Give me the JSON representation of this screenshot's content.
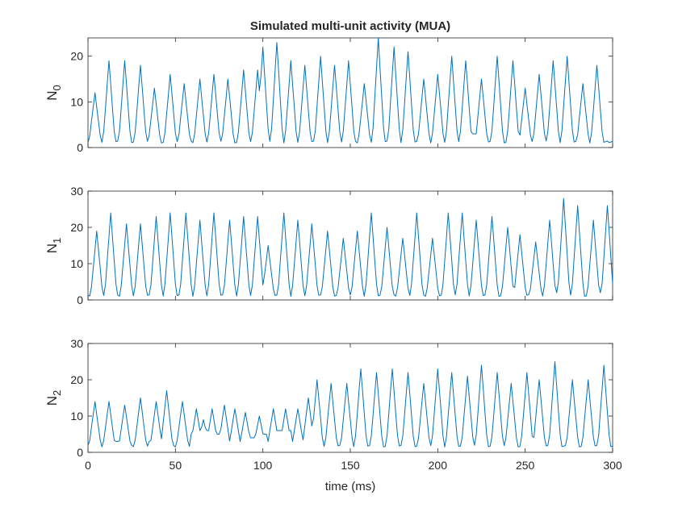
{
  "chart_data": {
    "type": "line",
    "title": "Simulated multi-unit activity (MUA)",
    "xlabel": "time (ms)",
    "xlim": [
      0,
      300
    ],
    "xticks": [
      0,
      50,
      100,
      150,
      200,
      250,
      300
    ],
    "line_color": "#0072BD",
    "axis_color": "#262626",
    "grid": false,
    "panels": [
      {
        "ylabel_main": "N",
        "ylabel_sub": "0",
        "ylim": [
          0,
          24
        ],
        "yticks": [
          0,
          10,
          20
        ],
        "baseline": 1,
        "peaks": [
          [
            4,
            12
          ],
          [
            12,
            19
          ],
          [
            21,
            19
          ],
          [
            30,
            18
          ],
          [
            38,
            13
          ],
          [
            47,
            16
          ],
          [
            55,
            14
          ],
          [
            64,
            15
          ],
          [
            72,
            16
          ],
          [
            80,
            15
          ],
          [
            89,
            17
          ],
          [
            97,
            17
          ],
          [
            100,
            22
          ],
          [
            108,
            23
          ],
          [
            116,
            19
          ],
          [
            124,
            18
          ],
          [
            133,
            20
          ],
          [
            141,
            18
          ],
          [
            149,
            19
          ],
          [
            158,
            14
          ],
          [
            166,
            24
          ],
          [
            175,
            22
          ],
          [
            183,
            21
          ],
          [
            192,
            15
          ],
          [
            200,
            16
          ],
          [
            208,
            20
          ],
          [
            216,
            19
          ],
          [
            225,
            15
          ],
          [
            234,
            20
          ],
          [
            243,
            19
          ],
          [
            250,
            13
          ],
          [
            258,
            16
          ],
          [
            266,
            19
          ],
          [
            274,
            20
          ],
          [
            283,
            14
          ],
          [
            291,
            18
          ]
        ],
        "noise": [
          [
            126,
            3
          ],
          [
            142,
            3
          ],
          [
            158,
            4
          ],
          [
            177,
            4
          ],
          [
            200,
            3
          ],
          [
            221,
            3
          ],
          [
            226,
            5
          ],
          [
            233,
            3
          ],
          [
            250,
            3
          ]
        ]
      },
      {
        "ylabel_main": "N",
        "ylabel_sub": "1",
        "ylim": [
          0,
          30
        ],
        "yticks": [
          0,
          10,
          20,
          30
        ],
        "baseline": 1,
        "peaks": [
          [
            5,
            19
          ],
          [
            13,
            24
          ],
          [
            22,
            21
          ],
          [
            30,
            21
          ],
          [
            39,
            23
          ],
          [
            47,
            24
          ],
          [
            56,
            24
          ],
          [
            64,
            22
          ],
          [
            72,
            24
          ],
          [
            81,
            22
          ],
          [
            89,
            23
          ],
          [
            97,
            23
          ],
          [
            103,
            15
          ],
          [
            112,
            24
          ],
          [
            120,
            22
          ],
          [
            128,
            21
          ],
          [
            137,
            19
          ],
          [
            146,
            17
          ],
          [
            154,
            19
          ],
          [
            162,
            24
          ],
          [
            171,
            20
          ],
          [
            180,
            17
          ],
          [
            188,
            24
          ],
          [
            197,
            17
          ],
          [
            206,
            24
          ],
          [
            214,
            24
          ],
          [
            222,
            22
          ],
          [
            231,
            23
          ],
          [
            240,
            20
          ],
          [
            247,
            18
          ],
          [
            256,
            16
          ],
          [
            264,
            22
          ],
          [
            272,
            28
          ],
          [
            280,
            26
          ],
          [
            289,
            22
          ],
          [
            297,
            26
          ]
        ],
        "noise": [
          [
            255,
            2
          ],
          [
            269,
            2
          ],
          [
            293,
            2
          ]
        ]
      },
      {
        "ylabel_main": "N",
        "ylabel_sub": "2",
        "ylim": [
          0,
          30
        ],
        "yticks": [
          0,
          10,
          20,
          30
        ],
        "baseline": 1.5,
        "peaks": [
          [
            4,
            14
          ],
          [
            12,
            14
          ],
          [
            21,
            13
          ],
          [
            30,
            15
          ],
          [
            39,
            14
          ],
          [
            45,
            17
          ],
          [
            54,
            14
          ],
          [
            62,
            12
          ],
          [
            66,
            9
          ],
          [
            71,
            12
          ],
          [
            78,
            13
          ],
          [
            84,
            12
          ],
          [
            90,
            11
          ],
          [
            98,
            10
          ],
          [
            106,
            12
          ],
          [
            113,
            12
          ],
          [
            120,
            12
          ],
          [
            126,
            15
          ],
          [
            131,
            20
          ],
          [
            139,
            19
          ],
          [
            148,
            19
          ],
          [
            156,
            23
          ],
          [
            165,
            22
          ],
          [
            174,
            23
          ],
          [
            183,
            22
          ],
          [
            192,
            19
          ],
          [
            200,
            23
          ],
          [
            208,
            22
          ],
          [
            217,
            21
          ],
          [
            225,
            24
          ],
          [
            234,
            22
          ],
          [
            242,
            19
          ],
          [
            251,
            22
          ],
          [
            258,
            20
          ],
          [
            267,
            25
          ],
          [
            277,
            20
          ],
          [
            286,
            20
          ],
          [
            295,
            24
          ]
        ],
        "noise": [
          [
            2,
            3
          ],
          [
            17,
            3
          ],
          [
            36,
            3
          ],
          [
            52,
            3
          ],
          [
            60,
            5
          ],
          [
            68,
            6
          ],
          [
            75,
            5
          ],
          [
            83,
            4
          ],
          [
            94,
            4
          ],
          [
            101,
            5
          ],
          [
            110,
            6
          ],
          [
            115,
            6
          ],
          [
            119,
            4
          ],
          [
            123,
            3
          ]
        ]
      }
    ]
  }
}
